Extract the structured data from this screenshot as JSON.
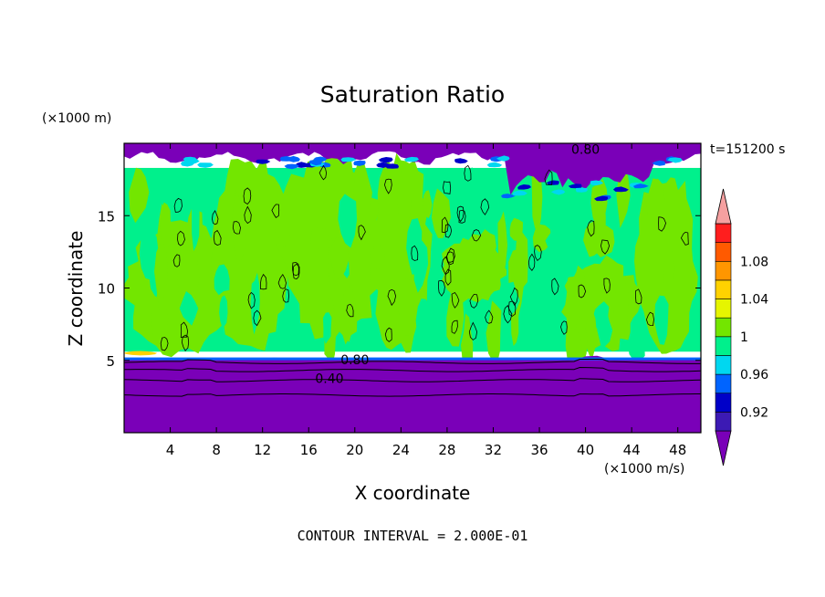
{
  "chart_data": {
    "type": "heatmap",
    "title": "Saturation Ratio",
    "xlabel": "X coordinate",
    "ylabel": "Z coordinate",
    "x_unit": "(×1000 m/s)",
    "y_unit": "(×1000 m)",
    "time_label": "t=151200 s",
    "footer": "CONTOUR INTERVAL = 2.000E-01",
    "xlim": [
      0,
      50
    ],
    "ylim": [
      0,
      20
    ],
    "x_ticks": [
      4,
      8,
      12,
      16,
      20,
      24,
      28,
      32,
      36,
      40,
      44,
      48
    ],
    "y_ticks": [
      5,
      10,
      15
    ],
    "contour_labels": [
      {
        "text": "0.80",
        "x": 20,
        "y": 5.05
      },
      {
        "text": "0.40",
        "x": 17.8,
        "y": 3.75
      },
      {
        "text": "0.80",
        "x": 40,
        "y": 19.6
      }
    ],
    "colorbar": {
      "tick_labels": [
        "0.92",
        "0.96",
        "1",
        "1.04",
        "1.08"
      ],
      "levels": [
        {
          "color": "#7a00b8"
        },
        {
          "color": "#3c1ab4"
        },
        {
          "color": "#0000c8"
        },
        {
          "color": "#0064ff"
        },
        {
          "color": "#00d7f0"
        },
        {
          "color": "#00f08c"
        },
        {
          "color": "#73e600"
        },
        {
          "color": "#e6f500"
        },
        {
          "color": "#ffd200"
        },
        {
          "color": "#ff9600"
        },
        {
          "color": "#ff5a00"
        },
        {
          "color": "#ff1e1e"
        },
        {
          "color": "#f5a0a0"
        }
      ]
    },
    "regions": {
      "lower_layer": {
        "from_z": 0,
        "to_z": 5.1,
        "color": "#7a00b8"
      },
      "boundary_band": {
        "from_z": 5.1,
        "to_z": 5.6,
        "color": "#00f08c"
      },
      "upper_dry": {
        "from_z": 18.3,
        "to_z": 20,
        "color": "#7a00b8"
      },
      "middle_colors": {
        "saturated": "#00f08c",
        "slightly_supersaturated": "#73e600"
      },
      "green_patches": [
        {
          "name": "patch-1",
          "x0": 0.3,
          "x1": 9.5,
          "z0": 5.6,
          "z1": 14.5
        },
        {
          "name": "patch-2",
          "x0": 7.5,
          "x1": 14.5,
          "z0": 6.0,
          "z1": 19.0
        },
        {
          "name": "patch-3",
          "x0": 13.5,
          "x1": 22.5,
          "z0": 6.5,
          "z1": 19.3
        },
        {
          "name": "patch-4",
          "x0": 21.5,
          "x1": 26.5,
          "z0": 5.8,
          "z1": 19.3
        },
        {
          "name": "patch-5",
          "x0": 27.5,
          "x1": 33.0,
          "z0": 9.0,
          "z1": 13.5
        },
        {
          "name": "patch-6",
          "x0": 38.0,
          "x1": 44.5,
          "z0": 5.7,
          "z1": 12.0
        },
        {
          "name": "patch-7",
          "x0": 44.5,
          "x1": 49.5,
          "z0": 5.7,
          "z1": 18.0
        }
      ]
    }
  }
}
